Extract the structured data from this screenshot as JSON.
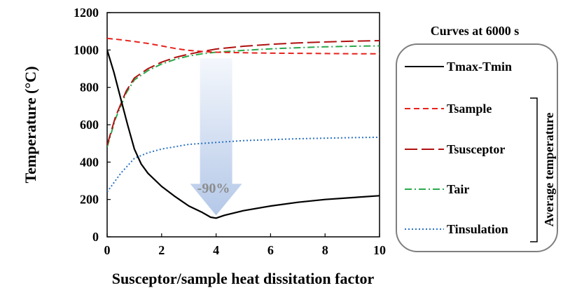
{
  "chart_data": {
    "type": "line",
    "title": "",
    "xlabel": "Susceptor/sample heat dissitation factor",
    "ylabel": "Temperature (°C)",
    "xlim": [
      0,
      10
    ],
    "ylim": [
      0,
      1200
    ],
    "x_ticks": [
      0,
      2,
      4,
      6,
      8,
      10
    ],
    "y_ticks": [
      0,
      200,
      400,
      600,
      800,
      1000,
      1200
    ],
    "grid": false,
    "legend": {
      "title": "Curves at 6000 s",
      "placement": "right",
      "group_label": "Average temperature"
    },
    "annotation": {
      "text": "-90%",
      "arrow_from": [
        4,
        1000
      ],
      "arrow_to": [
        4,
        100
      ]
    },
    "series": [
      {
        "name": "Tmax-Tmin",
        "color": "#000000",
        "style": "solid",
        "x": [
          0,
          0.25,
          0.5,
          0.75,
          1,
          1.25,
          1.5,
          2,
          2.5,
          3,
          3.5,
          3.8,
          4,
          4.3,
          5,
          6,
          7,
          8,
          9,
          10
        ],
        "y": [
          1000,
          880,
          740,
          600,
          470,
          390,
          340,
          270,
          215,
          165,
          130,
          105,
          100,
          115,
          140,
          165,
          185,
          200,
          210,
          220
        ]
      },
      {
        "name": "Tsample",
        "color": "#e8211b",
        "style": "short-dash",
        "x": [
          0,
          0.5,
          1,
          1.5,
          2,
          2.5,
          3,
          3.5,
          4,
          5,
          6,
          7,
          8,
          9,
          10
        ],
        "y": [
          1062,
          1055,
          1045,
          1035,
          1022,
          1008,
          998,
          992,
          988,
          985,
          983,
          982,
          981,
          980,
          980
        ]
      },
      {
        "name": "Tsusceptor",
        "color": "#b01010",
        "style": "long-dash",
        "x": [
          0,
          0.3,
          0.7,
          1,
          1.5,
          2,
          2.5,
          3,
          3.5,
          4,
          5,
          6,
          7,
          8,
          9,
          10
        ],
        "y": [
          490,
          640,
          780,
          850,
          900,
          935,
          960,
          978,
          992,
          1005,
          1020,
          1030,
          1038,
          1043,
          1047,
          1050
        ]
      },
      {
        "name": "Tair",
        "color": "#2aa84a",
        "style": "dash-dot",
        "x": [
          0,
          0.3,
          0.7,
          1,
          1.5,
          2,
          2.5,
          3,
          3.5,
          4,
          5,
          6,
          7,
          8,
          9,
          10
        ],
        "y": [
          480,
          630,
          770,
          840,
          890,
          925,
          950,
          968,
          980,
          988,
          998,
          1006,
          1012,
          1017,
          1020,
          1022
        ]
      },
      {
        "name": "Tinsulation",
        "color": "#2a72c4",
        "style": "dotted",
        "x": [
          0,
          0.5,
          1,
          1.5,
          2,
          3,
          4,
          5,
          6,
          7,
          8,
          9,
          10
        ],
        "y": [
          240,
          340,
          420,
          450,
          470,
          495,
          505,
          515,
          520,
          525,
          528,
          531,
          533
        ]
      }
    ]
  }
}
